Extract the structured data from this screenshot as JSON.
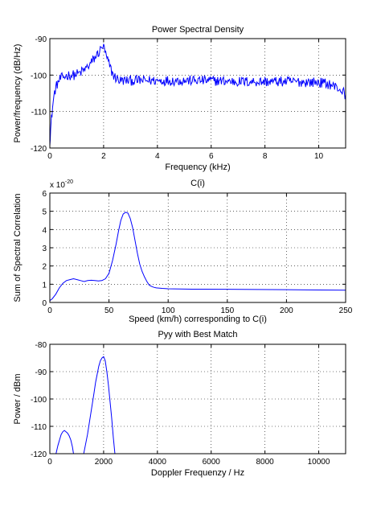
{
  "chart_data": [
    {
      "type": "line",
      "title": "Power Spectral Density",
      "xlabel": "Frequency (kHz)",
      "ylabel": "Power/frequency (dB/Hz)",
      "xlim": [
        0,
        11
      ],
      "ylim": [
        -120,
        -90
      ],
      "xticks": [
        0,
        2,
        4,
        6,
        8,
        10
      ],
      "yticks": [
        -120,
        -110,
        -100,
        -90
      ],
      "xtick_labels": [
        "0",
        "2",
        "4",
        "6",
        "8",
        "10"
      ],
      "ytick_labels": [
        "-120",
        "-110",
        "-100",
        "-90"
      ],
      "grid": true,
      "series": [
        {
          "color": "#0000ff",
          "noise_amplitude": 1.4,
          "x": [
            0,
            0.03,
            0.06,
            0.1,
            0.15,
            0.2,
            0.3,
            0.4,
            0.5,
            0.7,
            0.9,
            1.1,
            1.3,
            1.5,
            1.6,
            1.7,
            1.8,
            1.9,
            1.95,
            2.0,
            2.05,
            2.1,
            2.2,
            2.3,
            2.4,
            2.5,
            2.6,
            3.0,
            4.0,
            5.0,
            6.0,
            7.0,
            8.0,
            9.0,
            10.0,
            10.4,
            10.7,
            10.9,
            11.0
          ],
          "y": [
            -118,
            -115,
            -112,
            -109,
            -106,
            -104,
            -102,
            -101,
            -100.5,
            -100,
            -100,
            -99.5,
            -98.5,
            -97,
            -96,
            -95,
            -94,
            -93,
            -92,
            -92.5,
            -93.5,
            -95,
            -97,
            -99,
            -100.5,
            -101,
            -101.5,
            -101.5,
            -101.5,
            -101.5,
            -101.5,
            -101.8,
            -101.8,
            -101.8,
            -102,
            -102.5,
            -103.5,
            -104.5,
            -105.5
          ]
        }
      ]
    },
    {
      "type": "line",
      "title": "C(i)",
      "xlabel": "Speed (km/h) corresponding to C(i)",
      "ylabel": "Sum of Spectral Correlation",
      "y_exponent_base": "x 10",
      "y_exponent_power": "-20",
      "xlim": [
        0,
        250
      ],
      "ylim": [
        0,
        6
      ],
      "xticks": [
        0,
        50,
        100,
        150,
        200,
        250
      ],
      "yticks": [
        0,
        1,
        2,
        3,
        4,
        5,
        6
      ],
      "xtick_labels": [
        "0",
        "50",
        "100",
        "150",
        "200",
        "250"
      ],
      "ytick_labels": [
        "0",
        "1",
        "2",
        "3",
        "4",
        "5",
        "6"
      ],
      "grid": true,
      "series": [
        {
          "color": "#0000ff",
          "x": [
            0,
            2,
            5,
            8,
            11,
            14,
            17,
            20,
            23,
            26,
            29,
            32,
            35,
            38,
            41,
            44,
            47,
            50,
            53,
            56,
            58,
            60,
            62,
            64,
            66,
            68,
            70,
            72,
            74,
            76,
            78,
            80,
            82,
            84,
            86,
            88,
            90,
            95,
            100,
            110,
            120,
            150,
            200,
            250
          ],
          "y": [
            0.1,
            0.2,
            0.45,
            0.8,
            1.05,
            1.2,
            1.25,
            1.3,
            1.25,
            1.2,
            1.15,
            1.2,
            1.22,
            1.2,
            1.18,
            1.2,
            1.3,
            1.6,
            2.3,
            3.2,
            3.9,
            4.5,
            4.85,
            4.95,
            4.9,
            4.6,
            4.1,
            3.4,
            2.7,
            2.1,
            1.7,
            1.4,
            1.15,
            0.95,
            0.88,
            0.83,
            0.8,
            0.77,
            0.75,
            0.74,
            0.73,
            0.72,
            0.7,
            0.67
          ]
        }
      ]
    },
    {
      "type": "line",
      "title": "Pyy with Best Match",
      "xlabel": "Doppler Frequenzy / Hz",
      "ylabel": "Power / dBm",
      "xlim": [
        0,
        11000
      ],
      "ylim": [
        -120,
        -80
      ],
      "xticks": [
        0,
        2000,
        4000,
        6000,
        8000,
        10000
      ],
      "yticks": [
        -120,
        -110,
        -100,
        -90,
        -80
      ],
      "xtick_labels": [
        "0",
        "2000",
        "4000",
        "6000",
        "8000",
        "10000"
      ],
      "ytick_labels": [
        "-120",
        "-110",
        "-100",
        "-90",
        "-80"
      ],
      "grid": true,
      "series": [
        {
          "color": "#0000ff",
          "x": [
            230,
            300,
            360,
            420,
            480,
            540,
            600,
            660,
            720,
            780,
            840,
            880
          ],
          "y": [
            -120,
            -117,
            -115,
            -113,
            -112,
            -111.5,
            -112,
            -112.5,
            -113.5,
            -115,
            -117.5,
            -120
          ]
        },
        {
          "color": "#0000ff",
          "x": [
            1260,
            1320,
            1400,
            1480,
            1560,
            1640,
            1700,
            1760,
            1820,
            1880,
            1940,
            2000,
            2060,
            2120,
            2180,
            2240,
            2300,
            2360,
            2420
          ],
          "y": [
            -120,
            -117,
            -113,
            -108,
            -103,
            -98,
            -94,
            -91,
            -88,
            -86,
            -85,
            -84.5,
            -86,
            -90,
            -95,
            -101,
            -107,
            -114,
            -120
          ]
        }
      ]
    }
  ]
}
